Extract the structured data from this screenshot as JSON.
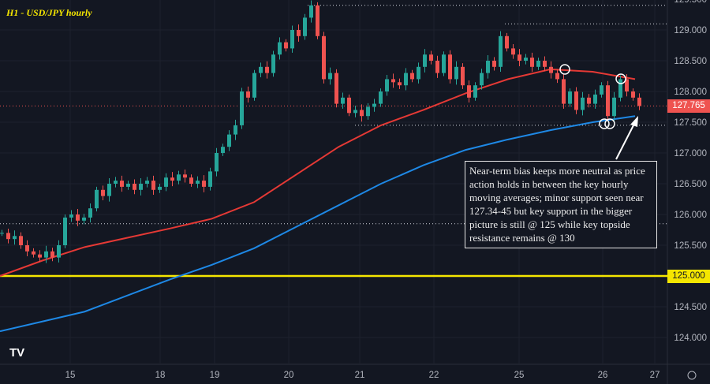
{
  "title": "H1 - USD/JPY hourly",
  "annotation": "Near-term bias keeps more neutral as price action holds in between the key hourly moving averages; minor support seen near 127.34-45 but key support in the bigger picture is still @ 125 while key topside resistance remains @ 130",
  "last_price": "127.765",
  "support_price": "125.000",
  "logo": "TV",
  "chart_data": {
    "type": "candlestick",
    "title": "H1 - USD/JPY hourly",
    "x_ticks": [
      "15",
      "18",
      "19",
      "20",
      "21",
      "22",
      "25",
      "26",
      "27"
    ],
    "y_ticks": [
      "129.500",
      "129.000",
      "128.500",
      "128.000",
      "127.500",
      "127.000",
      "126.500",
      "126.000",
      "125.500",
      "125.000",
      "124.500",
      "124.000"
    ],
    "ylim": [
      123.7,
      129.5
    ],
    "closes": [
      125.7,
      125.6,
      125.65,
      125.5,
      125.4,
      125.35,
      125.3,
      125.4,
      125.3,
      125.5,
      125.95,
      126.0,
      125.9,
      125.95,
      126.1,
      126.4,
      126.3,
      126.5,
      126.55,
      126.45,
      126.5,
      126.4,
      126.5,
      126.55,
      126.4,
      126.45,
      126.6,
      126.55,
      126.65,
      126.6,
      126.5,
      126.55,
      126.45,
      126.7,
      127.0,
      127.1,
      127.3,
      127.45,
      128.0,
      127.9,
      128.3,
      128.4,
      128.3,
      128.6,
      128.8,
      128.7,
      129.0,
      128.9,
      129.2,
      129.4,
      128.9,
      128.2,
      128.3,
      127.8,
      127.9,
      127.65,
      127.7,
      127.6,
      127.75,
      127.8,
      128.0,
      128.2,
      128.15,
      128.1,
      128.3,
      128.2,
      128.4,
      128.6,
      128.5,
      128.3,
      128.6,
      128.2,
      128.4,
      128.1,
      127.9,
      128.1,
      128.3,
      128.5,
      128.4,
      128.9,
      128.7,
      128.6,
      128.5,
      128.55,
      128.4,
      128.5,
      128.4,
      128.3,
      128.2,
      127.8,
      128.0,
      127.7,
      127.9,
      127.8,
      127.95,
      128.1,
      127.6,
      127.9,
      128.2,
      128.0,
      127.9,
      127.765
    ],
    "ma_red": [
      125.0,
      125.25,
      125.47,
      125.62,
      125.77,
      125.93,
      126.2,
      126.65,
      127.1,
      127.45,
      127.7,
      127.97,
      128.2,
      128.36,
      128.32,
      128.2
    ],
    "ma_blue": [
      124.1,
      124.26,
      124.42,
      124.68,
      124.94,
      125.18,
      125.45,
      125.8,
      126.15,
      126.5,
      126.8,
      127.05,
      127.22,
      127.37,
      127.5,
      127.6
    ],
    "levels": [
      {
        "price": 125.0,
        "style": "solid",
        "color": "#f5e600"
      },
      {
        "price": 129.4,
        "style": "dotted"
      },
      {
        "price": 129.1,
        "style": "dotted"
      },
      {
        "price": 127.45,
        "style": "dotted"
      },
      {
        "price": 125.85,
        "style": "dotted"
      },
      {
        "price": 127.765,
        "style": "dotted",
        "color": "#ef5350"
      }
    ],
    "colors": {
      "up": "#26a69a",
      "down": "#ef5350",
      "ma_red": "#e53935",
      "ma_blue": "#1e88e5",
      "background": "#131722"
    }
  }
}
